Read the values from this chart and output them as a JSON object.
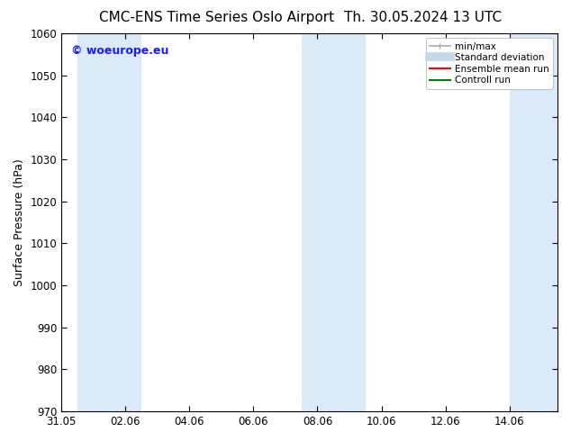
{
  "title_left": "CMC-ENS Time Series Oslo Airport",
  "title_right": "Th. 30.05.2024 13 UTC",
  "ylabel": "Surface Pressure (hPa)",
  "ylim": [
    970,
    1060
  ],
  "yticks": [
    970,
    980,
    990,
    1000,
    1010,
    1020,
    1030,
    1040,
    1050,
    1060
  ],
  "xlim_start": 0.0,
  "xlim_end": 15.5,
  "xtick_labels": [
    "31.05",
    "02.06",
    "04.06",
    "06.06",
    "08.06",
    "10.06",
    "12.06",
    "14.06"
  ],
  "xtick_positions": [
    0,
    2,
    4,
    6,
    8,
    10,
    12,
    14
  ],
  "shaded_bands": [
    {
      "x_start": 0.5,
      "x_end": 2.5
    },
    {
      "x_start": 7.5,
      "x_end": 9.5
    },
    {
      "x_start": 14.0,
      "x_end": 15.5
    }
  ],
  "shaded_color": "#daeaf8",
  "background_color": "#ffffff",
  "watermark_text": "© woeurope.eu",
  "watermark_color": "#1a1aff",
  "legend_entries": [
    {
      "label": "min/max",
      "color": "#aaaaaa",
      "lw": 1.2
    },
    {
      "label": "Standard deviation",
      "color": "#c5d8ea",
      "lw": 7
    },
    {
      "label": "Ensemble mean run",
      "color": "#ff0000",
      "lw": 1.5
    },
    {
      "label": "Controll run",
      "color": "#008000",
      "lw": 1.5
    }
  ],
  "title_fontsize": 11,
  "tick_fontsize": 8.5,
  "ylabel_fontsize": 9,
  "legend_fontsize": 7.5,
  "watermark_fontsize": 9
}
